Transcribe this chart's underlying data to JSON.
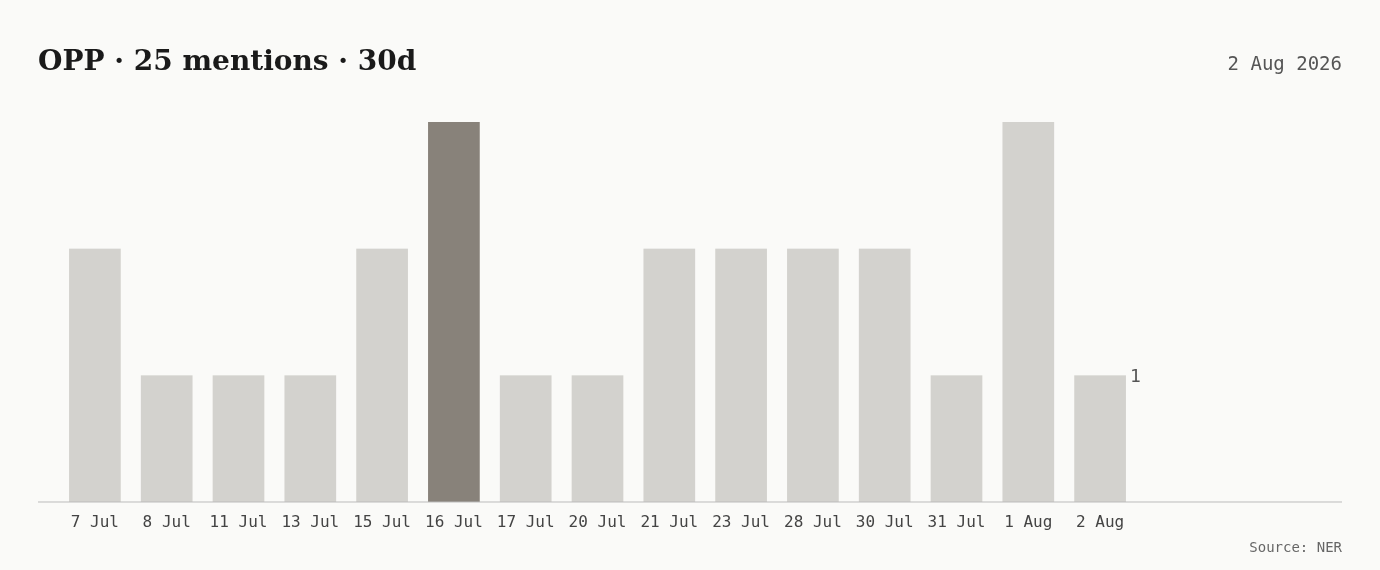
{
  "chart_data": {
    "type": "bar",
    "title": "OPP · 25 mentions · 30d",
    "subtitle": "2 Aug 2026",
    "categories": [
      "7 Jul",
      "8 Jul",
      "11 Jul",
      "13 Jul",
      "15 Jul",
      "16 Jul",
      "17 Jul",
      "20 Jul",
      "21 Jul",
      "23 Jul",
      "28 Jul",
      "30 Jul",
      "31 Jul",
      "1 Aug",
      "2 Aug"
    ],
    "values": [
      2,
      1,
      1,
      1,
      2,
      3,
      1,
      1,
      2,
      2,
      2,
      2,
      1,
      3,
      1
    ],
    "colors": [
      "#d3d2ce",
      "#d3d2ce",
      "#d3d2ce",
      "#d3d2ce",
      "#d3d2ce",
      "#88827a",
      "#d3d2ce",
      "#d3d2ce",
      "#d3d2ce",
      "#d3d2ce",
      "#d3d2ce",
      "#d3d2ce",
      "#d3d2ce",
      "#d3d2ce",
      "#d3d2ce"
    ],
    "value_labels": [
      null,
      null,
      null,
      null,
      null,
      null,
      null,
      null,
      null,
      null,
      null,
      null,
      null,
      null,
      "1"
    ],
    "ylim": [
      0,
      3
    ],
    "annotations": [
      "Source: NER"
    ]
  }
}
